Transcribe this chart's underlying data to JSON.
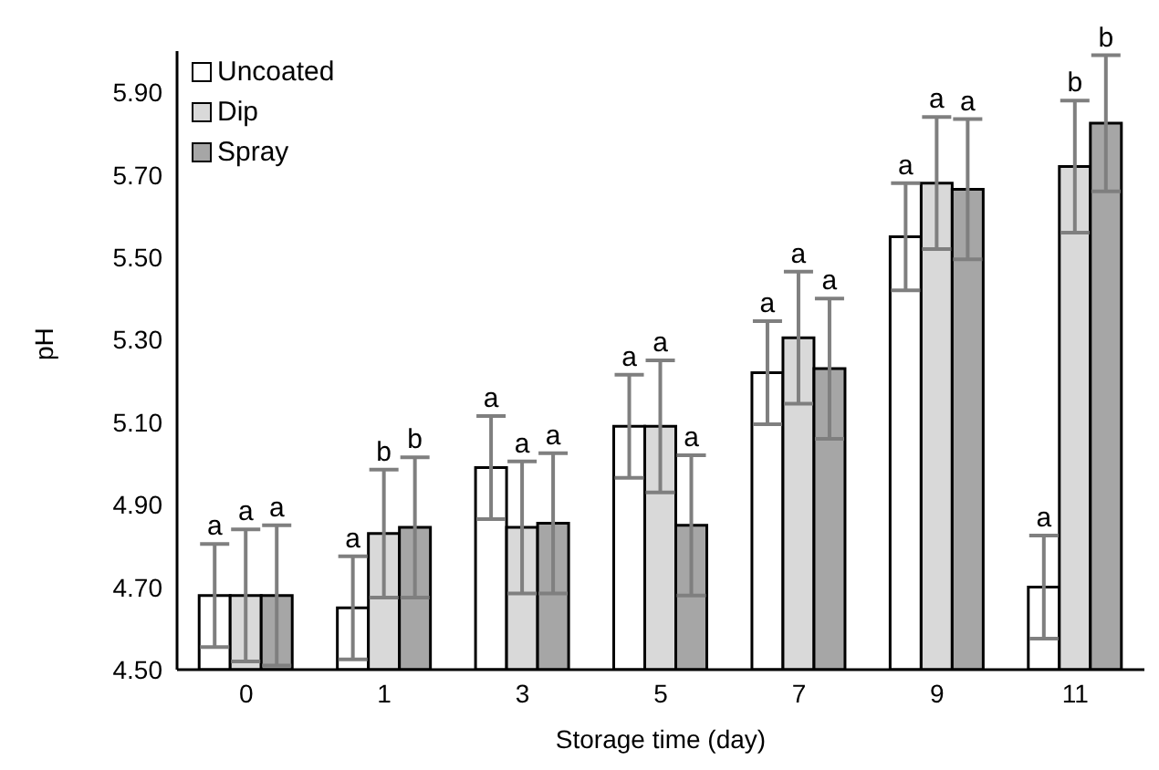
{
  "chart_data": {
    "type": "bar",
    "xlabel": "Storage time (day)",
    "ylabel": "pH",
    "categories": [
      "0",
      "1",
      "3",
      "5",
      "7",
      "9",
      "11"
    ],
    "series": [
      {
        "name": "Uncoated",
        "color": "#ffffff",
        "values": [
          4.68,
          4.65,
          4.99,
          5.09,
          5.22,
          5.55,
          4.7
        ],
        "errors": [
          0.125,
          0.125,
          0.125,
          0.125,
          0.125,
          0.13,
          0.125
        ],
        "value_labels": [
          "a",
          "a",
          "a",
          "a",
          "a",
          "a",
          "a"
        ]
      },
      {
        "name": "Dip",
        "color": "#d9d9d9",
        "values": [
          4.68,
          4.83,
          4.845,
          5.09,
          5.305,
          5.68,
          5.72
        ],
        "errors": [
          0.16,
          0.155,
          0.16,
          0.16,
          0.16,
          0.16,
          0.16
        ],
        "value_labels": [
          "a",
          "b",
          "a",
          "a",
          "a",
          "a",
          "b"
        ]
      },
      {
        "name": "Spray",
        "color": "#a6a6a6",
        "values": [
          4.68,
          4.845,
          4.855,
          4.85,
          5.23,
          5.665,
          5.825
        ],
        "errors": [
          0.17,
          0.17,
          0.17,
          0.17,
          0.17,
          0.17,
          0.165
        ],
        "value_labels": [
          "a",
          "b",
          "a",
          "a",
          "a",
          "a",
          "b"
        ]
      }
    ],
    "ylim": [
      4.5,
      6.0
    ],
    "yticks": [
      {
        "value": 4.5,
        "label": "4.50"
      },
      {
        "value": 4.7,
        "label": "4.70"
      },
      {
        "value": 4.9,
        "label": "4.90"
      },
      {
        "value": 5.1,
        "label": "5.10"
      },
      {
        "value": 5.3,
        "label": "5.30"
      },
      {
        "value": 5.5,
        "label": "5.50"
      },
      {
        "value": 5.7,
        "label": "5.70"
      },
      {
        "value": 5.9,
        "label": "5.90"
      }
    ],
    "grid": false,
    "legend": "top left"
  }
}
